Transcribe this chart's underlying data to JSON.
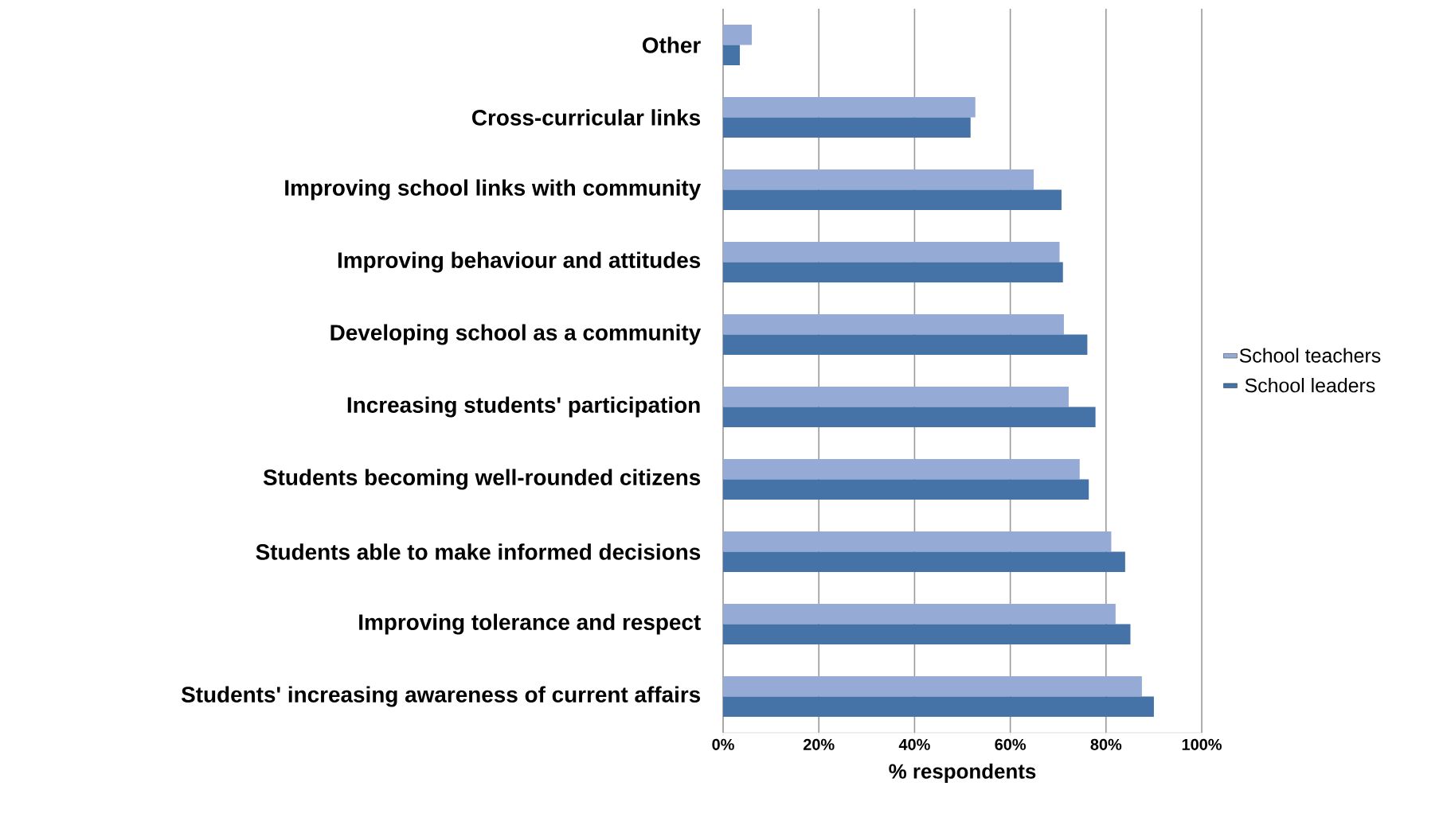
{
  "chart_data": {
    "type": "bar",
    "orientation": "horizontal",
    "xlabel": "% respondents",
    "categories": [
      "Other",
      "Cross-curricular links",
      "Improving school links with community",
      "Improving behaviour and attitudes",
      "Developing school as a community",
      "Increasing students' participation",
      "Students becoming well-rounded citizens",
      "Students able to make informed decisions",
      "Improving tolerance and respect",
      "Students' increasing awareness of current affairs"
    ],
    "series": [
      {
        "name": "School teachers",
        "color": "#95abd5",
        "values": [
          6.0,
          52.7,
          64.9,
          70.3,
          71.2,
          72.2,
          74.5,
          81.1,
          82.0,
          87.5
        ]
      },
      {
        "name": "School leaders",
        "color": "#4572a7",
        "values": [
          3.5,
          51.7,
          70.7,
          71.0,
          76.1,
          77.8,
          76.4,
          84.0,
          85.1,
          90.0
        ]
      }
    ],
    "xlim": [
      0,
      100
    ],
    "xticks": [
      {
        "value": 0,
        "label": "0%"
      },
      {
        "value": 20,
        "label": "20%"
      },
      {
        "value": 40,
        "label": "40%"
      },
      {
        "value": 60,
        "label": "60%"
      },
      {
        "value": 80,
        "label": "80%"
      },
      {
        "value": 100,
        "label": "100%"
      }
    ],
    "grid": "x",
    "legend": "right"
  }
}
